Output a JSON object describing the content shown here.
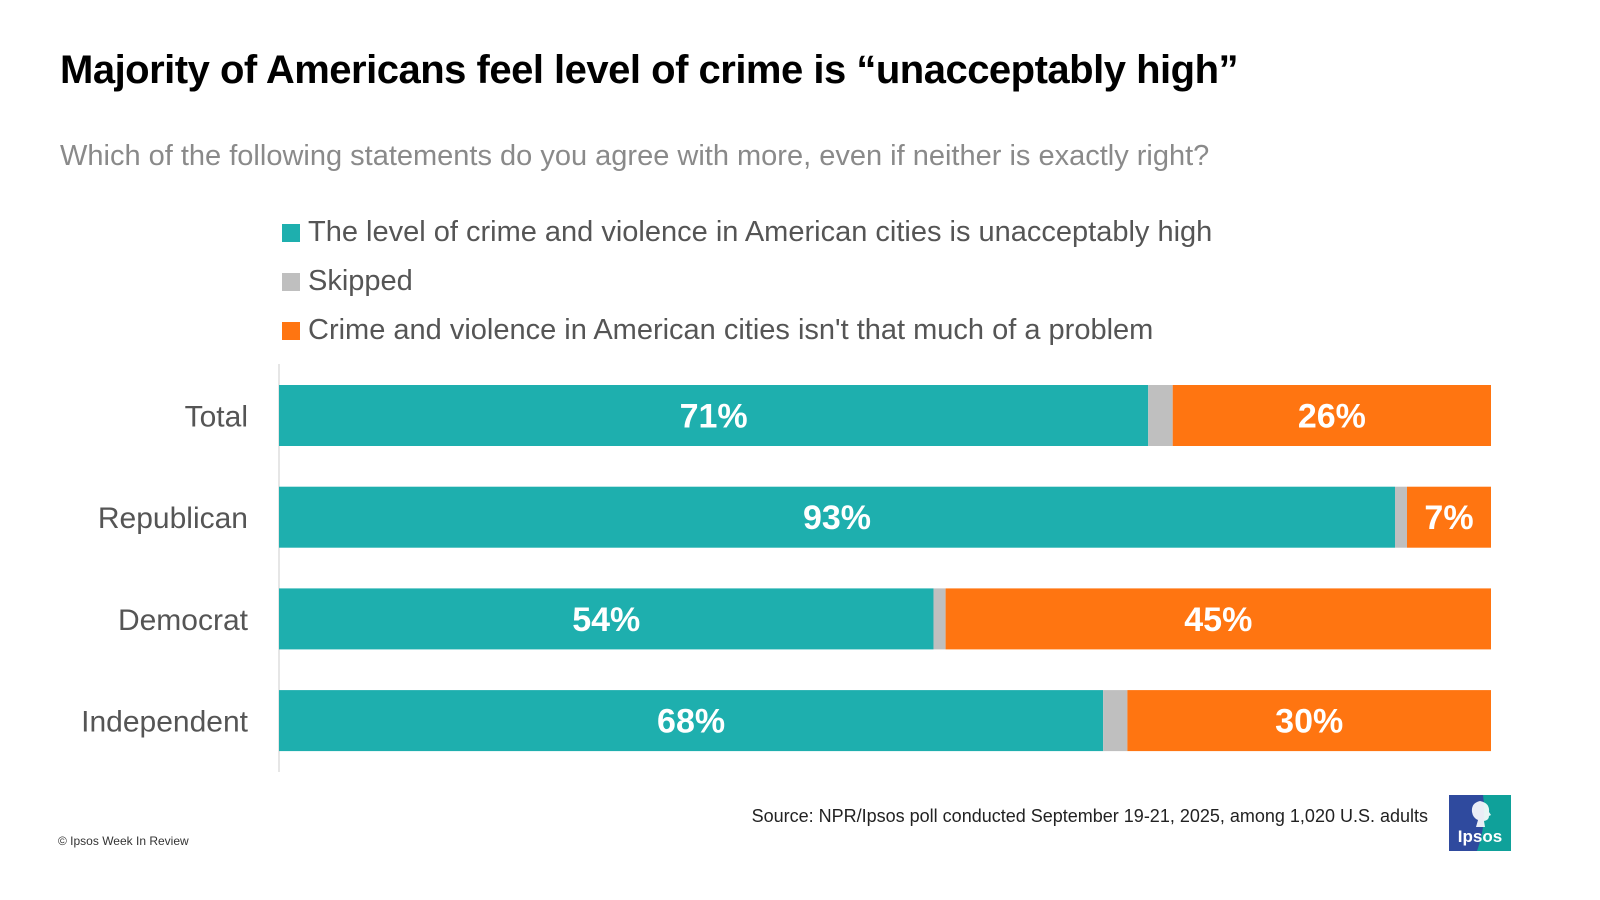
{
  "header": {
    "title": "Majority of Americans feel level of crime is “unacceptably high”",
    "subtitle": "Which of the following statements do you agree with more, even if neither is exactly right?"
  },
  "legend": [
    {
      "label": "The level of crime and violence in American cities is unacceptably high",
      "color": "#1eafae"
    },
    {
      "label": "Skipped",
      "color": "#bfbfbf"
    },
    {
      "label": "Crime and violence in American cities isn't that much of a problem",
      "color": "#ff7511"
    }
  ],
  "chart_data": {
    "type": "bar",
    "orientation": "horizontal",
    "stacked": true,
    "title": "Majority of Americans feel level of crime is “unacceptably high”",
    "subtitle": "Which of the following statements do you agree with more, even if neither is exactly right?",
    "xlabel": "",
    "ylabel": "",
    "xlim": [
      0,
      100
    ],
    "unit": "%",
    "grid": false,
    "legend_position": "top",
    "categories": [
      "Total",
      "Republican",
      "Democrat",
      "Independent"
    ],
    "series": [
      {
        "name": "The level of crime and violence in American cities is unacceptably high",
        "color": "#1eafae",
        "values": [
          71,
          93,
          54,
          68
        ],
        "labels": [
          "71%",
          "93%",
          "54%",
          "68%"
        ]
      },
      {
        "name": "Skipped",
        "color": "#bfbfbf",
        "values": [
          2,
          1,
          1,
          2
        ],
        "labels": [
          "",
          "",
          "",
          ""
        ]
      },
      {
        "name": "Crime and violence in American cities isn't that much of a problem",
        "color": "#ff7511",
        "values": [
          26,
          7,
          45,
          30
        ],
        "labels": [
          "26%",
          "7%",
          "45%",
          "30%"
        ]
      }
    ]
  },
  "footer": {
    "source": "Source: NPR/Ipsos poll conducted  September 19-21, 2025, among 1,020 U.S. adults",
    "copyright": "© Ipsos Week In Review",
    "logo_text": "Ipsos",
    "logo_colors": {
      "left": "#2f4a9e",
      "right": "#0fa19a"
    }
  }
}
